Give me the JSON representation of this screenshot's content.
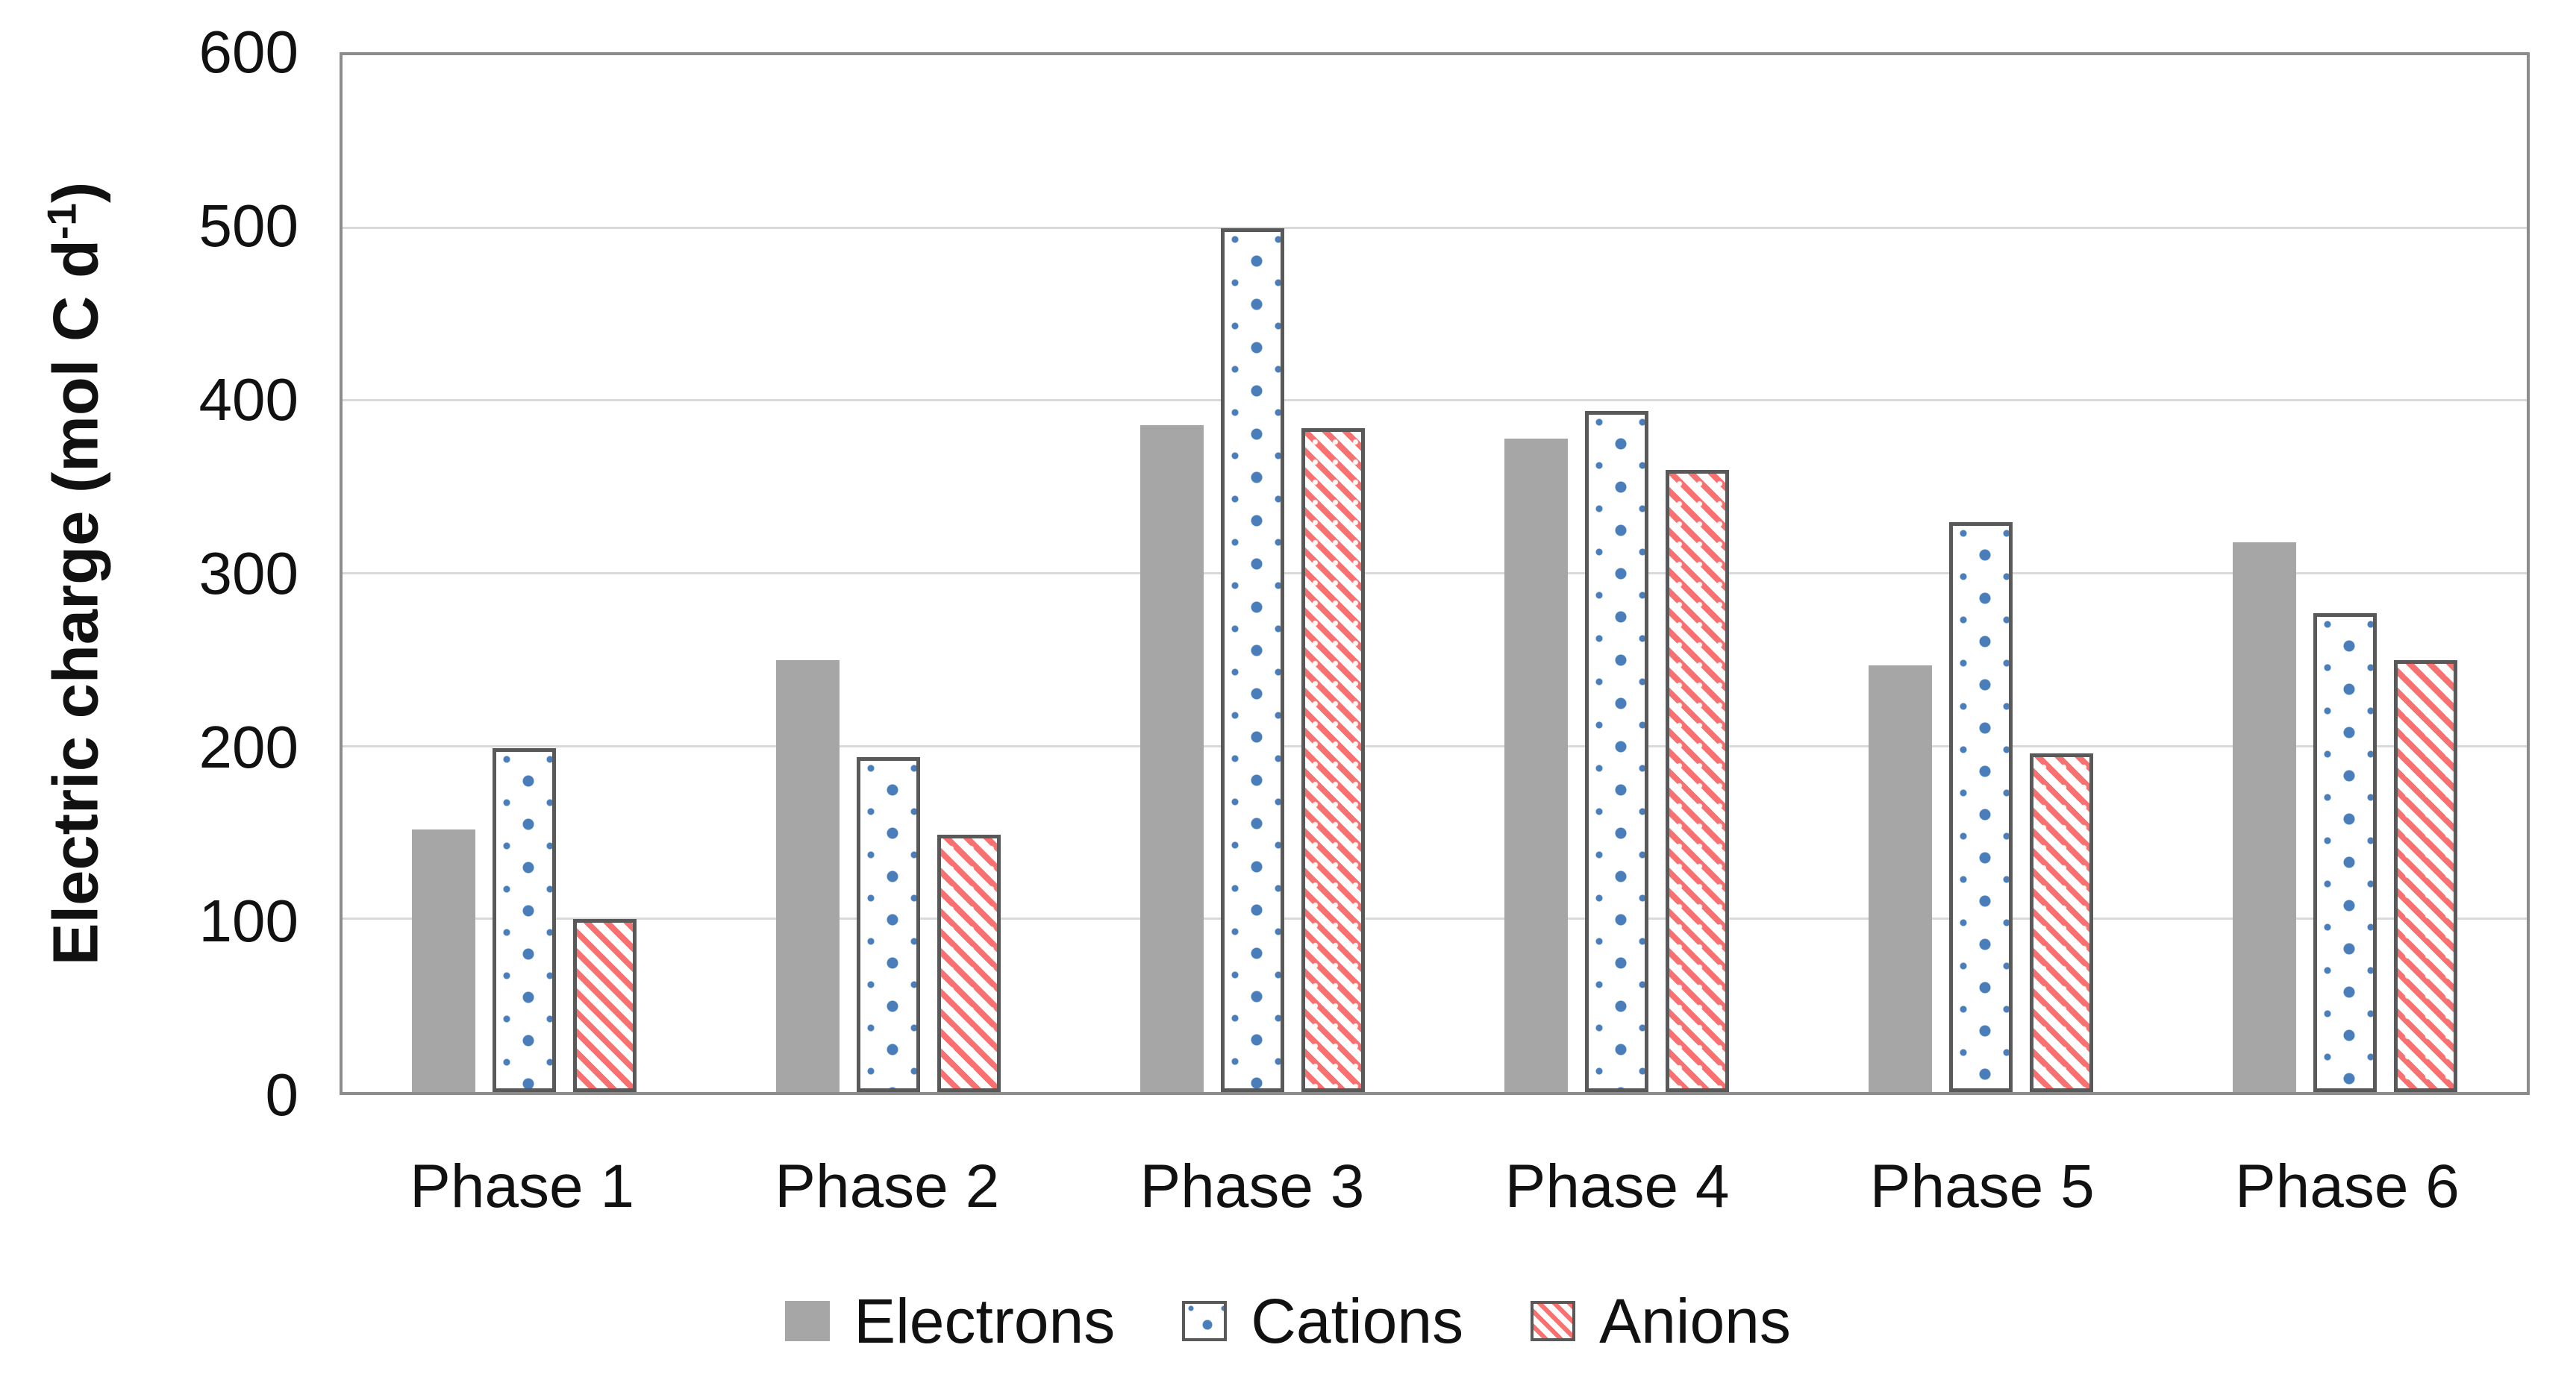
{
  "chart_data": {
    "type": "bar",
    "title": "",
    "categories": [
      "Phase 1",
      "Phase 2",
      "Phase 3",
      "Phase 4",
      "Phase 5",
      "Phase 6"
    ],
    "series": [
      {
        "key": "electrons",
        "name": "Electrons",
        "values": [
          152,
          250,
          386,
          378,
          247,
          318
        ],
        "fill": "#a6a6a6",
        "pattern": "solid"
      },
      {
        "key": "cations",
        "name": "Cations",
        "values": [
          199,
          194,
          500,
          394,
          330,
          277
        ],
        "fill": "#ffffff",
        "pattern": "dots",
        "pattern_color": "#4a7ebb",
        "border_color": "#595959"
      },
      {
        "key": "anions",
        "name": "Anions",
        "values": [
          100,
          149,
          384,
          360,
          196,
          250
        ],
        "fill": "#ffffff",
        "pattern": "diagonal-stripes",
        "pattern_color": "#f87070",
        "border_color": "#595959"
      }
    ],
    "y_axis": {
      "label_full": "Electric charge (mol C d-1)",
      "label_main": "Electric charge (mol C d",
      "label_sup": "-1",
      "label_close": ")",
      "min": 0,
      "max": 600,
      "tick_step": 100,
      "ticks": [
        0,
        100,
        200,
        300,
        400,
        500,
        600
      ]
    },
    "x_axis": {
      "label": ""
    },
    "legend": {
      "position": "bottom",
      "items": [
        "Electrons",
        "Cations",
        "Anions"
      ]
    },
    "grid": true,
    "colors": {
      "gridline": "#d9d9d9",
      "axis_border": "#8c8c8c",
      "border_dark": "#595959",
      "electrons_fill": "#a6a6a6",
      "cations_dot": "#4a7ebb",
      "anions_stripe": "#f87070",
      "text": "#111111"
    }
  }
}
